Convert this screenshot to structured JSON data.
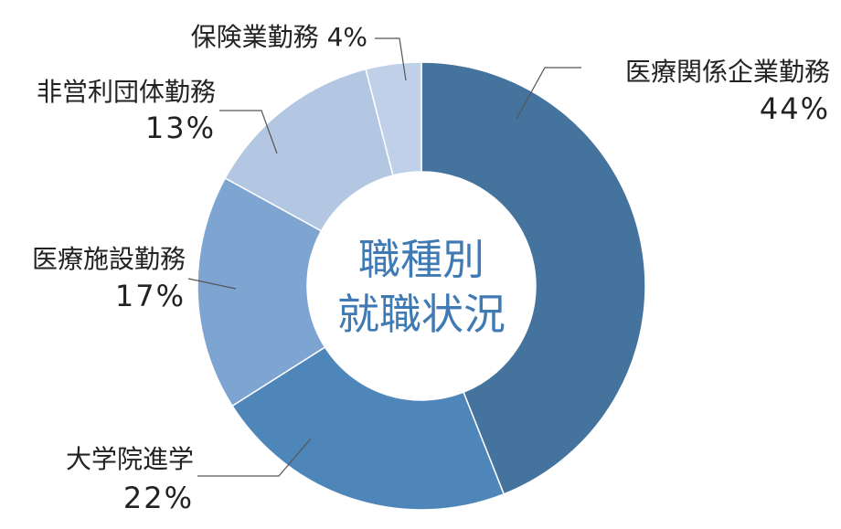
{
  "chart_data": {
    "type": "pie",
    "title": "職種別\n就職状況",
    "slices": [
      {
        "label": "医療関係企業勤務",
        "value": 44,
        "value_label": "44%",
        "color": "#44739E"
      },
      {
        "label": "大学院進学",
        "value": 22,
        "value_label": "22%",
        "color": "#4E86B9"
      },
      {
        "label": "医療施設勤務",
        "value": 17,
        "value_label": "17%",
        "color": "#7EA4D2"
      },
      {
        "label": "非営利団体勤務",
        "value": 13,
        "value_label": "13%",
        "color": "#B3C7E2"
      },
      {
        "label": "保険業勤務",
        "value": 4,
        "value_label": "4%",
        "color": "#BFD0E8"
      }
    ],
    "center_text_color": "#3F7AB4",
    "label_color": "#222222"
  }
}
